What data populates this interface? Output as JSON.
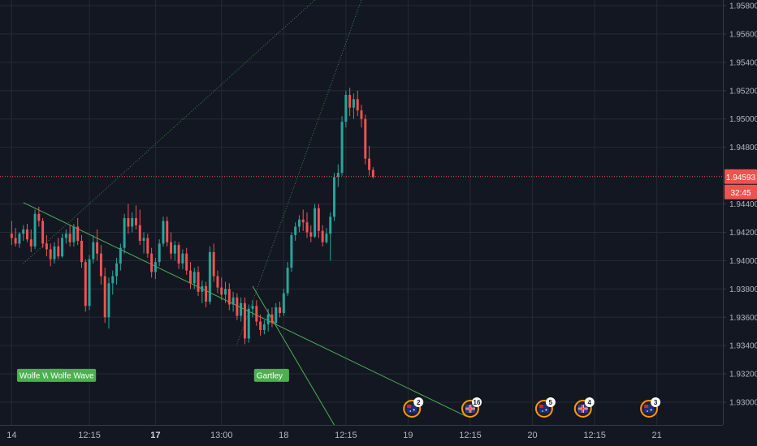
{
  "chart_data": {
    "type": "candlestick",
    "ylim": [
      1.9284,
      1.9584
    ],
    "x_range": [
      -3,
      183
    ],
    "grid": true,
    "colors": {
      "background": "#131722",
      "grid": "#242a36",
      "up": "#26a69a",
      "down": "#ef5350",
      "text": "#b2b5be",
      "pattern_line": "#4caf50",
      "price_line": "#ef5350"
    },
    "y_ticks": [
      "1.95800",
      "1.95600",
      "1.95400",
      "1.95200",
      "1.95000",
      "1.94800",
      "1.94400",
      "1.94200",
      "1.94000",
      "1.93800",
      "1.93600",
      "1.93400",
      "1.93200",
      "1.93000"
    ],
    "x_ticks": [
      {
        "x": 0,
        "label": "14",
        "bold": false
      },
      {
        "x": 20,
        "label": "12:15",
        "bold": false
      },
      {
        "x": 37,
        "label": "17",
        "bold": true
      },
      {
        "x": 54,
        "label": "13:00",
        "bold": false
      },
      {
        "x": 70,
        "label": "18",
        "bold": false
      },
      {
        "x": 86,
        "label": "12:15",
        "bold": false
      },
      {
        "x": 102,
        "label": "19",
        "bold": false
      },
      {
        "x": 118,
        "label": "12:15",
        "bold": false
      },
      {
        "x": 134,
        "label": "20",
        "bold": false
      },
      {
        "x": 150,
        "label": "12:15",
        "bold": false
      },
      {
        "x": 166,
        "label": "21",
        "bold": false
      }
    ],
    "current_price": {
      "label": "1.94593",
      "value": 1.94593,
      "countdown": "32:45"
    },
    "candles": [
      [
        1.9419,
        1.9428,
        1.9411,
        1.9416
      ],
      [
        1.9416,
        1.9423,
        1.941,
        1.9412
      ],
      [
        1.9412,
        1.942,
        1.9409,
        1.9419
      ],
      [
        1.9419,
        1.9425,
        1.9414,
        1.9422
      ],
      [
        1.9422,
        1.9426,
        1.9413,
        1.9415
      ],
      [
        1.9415,
        1.9422,
        1.9406,
        1.941
      ],
      [
        1.941,
        1.9436,
        1.9408,
        1.9433
      ],
      [
        1.9433,
        1.9438,
        1.9424,
        1.9428
      ],
      [
        1.9428,
        1.943,
        1.9409,
        1.9412
      ],
      [
        1.9412,
        1.9418,
        1.9403,
        1.9408
      ],
      [
        1.9408,
        1.9412,
        1.9396,
        1.9401
      ],
      [
        1.9401,
        1.9413,
        1.9398,
        1.941
      ],
      [
        1.941,
        1.9416,
        1.9401,
        1.9403
      ],
      [
        1.9403,
        1.9419,
        1.9402,
        1.9416
      ],
      [
        1.9416,
        1.9422,
        1.9412,
        1.9419
      ],
      [
        1.9419,
        1.9425,
        1.941,
        1.9413
      ],
      [
        1.9413,
        1.9426,
        1.941,
        1.9424
      ],
      [
        1.9424,
        1.943,
        1.9411,
        1.9414
      ],
      [
        1.9414,
        1.9418,
        1.9395,
        1.9399
      ],
      [
        1.9399,
        1.9401,
        1.9364,
        1.9368
      ],
      [
        1.9368,
        1.9404,
        1.9365,
        1.9401
      ],
      [
        1.9401,
        1.9418,
        1.9398,
        1.9413
      ],
      [
        1.9413,
        1.9422,
        1.94,
        1.9405
      ],
      [
        1.9405,
        1.9411,
        1.9383,
        1.9389
      ],
      [
        1.9389,
        1.9395,
        1.9356,
        1.936
      ],
      [
        1.936,
        1.9388,
        1.9352,
        1.9384
      ],
      [
        1.9384,
        1.9393,
        1.9376,
        1.9389
      ],
      [
        1.9389,
        1.9402,
        1.9383,
        1.9398
      ],
      [
        1.9398,
        1.9412,
        1.9393,
        1.9409
      ],
      [
        1.9409,
        1.9433,
        1.9405,
        1.943
      ],
      [
        1.943,
        1.944,
        1.9419,
        1.9424
      ],
      [
        1.9424,
        1.9434,
        1.942,
        1.943
      ],
      [
        1.943,
        1.9439,
        1.9422,
        1.9425
      ],
      [
        1.9425,
        1.9436,
        1.9411,
        1.9414
      ],
      [
        1.9414,
        1.942,
        1.9405,
        1.9416
      ],
      [
        1.9416,
        1.9419,
        1.9402,
        1.9405
      ],
      [
        1.9405,
        1.9409,
        1.9388,
        1.9392
      ],
      [
        1.9392,
        1.9402,
        1.9387,
        1.9399
      ],
      [
        1.9399,
        1.9415,
        1.9396,
        1.9412
      ],
      [
        1.9412,
        1.9431,
        1.941,
        1.9428
      ],
      [
        1.9428,
        1.9431,
        1.941,
        1.9413
      ],
      [
        1.9413,
        1.942,
        1.9401,
        1.9405
      ],
      [
        1.9405,
        1.9414,
        1.94,
        1.9411
      ],
      [
        1.9411,
        1.9413,
        1.9394,
        1.9398
      ],
      [
        1.9398,
        1.9408,
        1.9394,
        1.9405
      ],
      [
        1.9405,
        1.9409,
        1.939,
        1.9393
      ],
      [
        1.9393,
        1.9399,
        1.938,
        1.9384
      ],
      [
        1.9384,
        1.9395,
        1.938,
        1.9392
      ],
      [
        1.9392,
        1.9396,
        1.9375,
        1.9378
      ],
      [
        1.9378,
        1.9386,
        1.937,
        1.9382
      ],
      [
        1.9382,
        1.9385,
        1.9367,
        1.9371
      ],
      [
        1.9371,
        1.941,
        1.9369,
        1.9406
      ],
      [
        1.9406,
        1.9412,
        1.9385,
        1.9389
      ],
      [
        1.9389,
        1.9393,
        1.9377,
        1.9381
      ],
      [
        1.9381,
        1.9388,
        1.9372,
        1.9376
      ],
      [
        1.9376,
        1.9385,
        1.937,
        1.938
      ],
      [
        1.938,
        1.9384,
        1.9365,
        1.9369
      ],
      [
        1.9369,
        1.9378,
        1.9364,
        1.9374
      ],
      [
        1.9374,
        1.9377,
        1.9358,
        1.9361
      ],
      [
        1.9361,
        1.9374,
        1.9357,
        1.937
      ],
      [
        1.937,
        1.9374,
        1.9341,
        1.9345
      ],
      [
        1.9345,
        1.9369,
        1.9342,
        1.9366
      ],
      [
        1.9366,
        1.9372,
        1.936,
        1.9368
      ],
      [
        1.9368,
        1.9372,
        1.9354,
        1.9357
      ],
      [
        1.9357,
        1.9362,
        1.9347,
        1.9351
      ],
      [
        1.9351,
        1.9358,
        1.9348,
        1.9355
      ],
      [
        1.9355,
        1.9366,
        1.935,
        1.9362
      ],
      [
        1.9362,
        1.9367,
        1.9353,
        1.9356
      ],
      [
        1.9356,
        1.937,
        1.9354,
        1.9367
      ],
      [
        1.9367,
        1.9371,
        1.936,
        1.9363
      ],
      [
        1.9363,
        1.938,
        1.9361,
        1.9377
      ],
      [
        1.9377,
        1.9399,
        1.9375,
        1.9395
      ],
      [
        1.9395,
        1.942,
        1.9392,
        1.9418
      ],
      [
        1.9418,
        1.9427,
        1.9414,
        1.9424
      ],
      [
        1.9424,
        1.9432,
        1.942,
        1.9429
      ],
      [
        1.9429,
        1.9436,
        1.9421,
        1.9427
      ],
      [
        1.9427,
        1.9434,
        1.9416,
        1.942
      ],
      [
        1.942,
        1.9425,
        1.9413,
        1.9417
      ],
      [
        1.9417,
        1.944,
        1.9416,
        1.9437
      ],
      [
        1.9437,
        1.944,
        1.9416,
        1.9421
      ],
      [
        1.9421,
        1.9425,
        1.941,
        1.9413
      ],
      [
        1.9413,
        1.9423,
        1.9412,
        1.9419
      ],
      [
        1.9419,
        1.9434,
        1.94,
        1.9431
      ],
      [
        1.9431,
        1.9462,
        1.9428,
        1.9459
      ],
      [
        1.9459,
        1.9468,
        1.9452,
        1.9462
      ],
      [
        1.9462,
        1.9502,
        1.946,
        1.9498
      ],
      [
        1.9498,
        1.952,
        1.9494,
        1.9517
      ],
      [
        1.9517,
        1.9522,
        1.9502,
        1.9508
      ],
      [
        1.9508,
        1.9518,
        1.95,
        1.9514
      ],
      [
        1.9514,
        1.952,
        1.9502,
        1.9506
      ],
      [
        1.9506,
        1.951,
        1.9494,
        1.95
      ],
      [
        1.95,
        1.9503,
        1.9468,
        1.9472
      ],
      [
        1.9472,
        1.9481,
        1.946,
        1.9464
      ],
      [
        1.9464,
        1.9466,
        1.9458,
        1.9459
      ]
    ],
    "patterns": [
      {
        "label": "Wolfe Wave",
        "x": 2,
        "anchor": "start",
        "y": 1.9319
      },
      {
        "label": "Wolfe Wave",
        "x": 10,
        "anchor": "start",
        "y": 1.9319
      },
      {
        "label": "Gartley",
        "x": 63,
        "anchor": "start",
        "y": 1.9319
      }
    ],
    "trend_lines": [
      {
        "x1": 3,
        "y1": 1.9441,
        "x2": 117,
        "y2": 1.929,
        "style": "solid"
      },
      {
        "x1": 62,
        "y1": 1.9382,
        "x2": 83,
        "y2": 1.9284,
        "style": "solid"
      },
      {
        "x1": 3,
        "y1": 1.9398,
        "x2": 78,
        "y2": 1.9584,
        "style": "dotted"
      },
      {
        "x1": 58,
        "y1": 1.9341,
        "x2": 90,
        "y2": 1.9584,
        "style": "dotted"
      }
    ],
    "events": [
      {
        "x": 103,
        "count": "2",
        "flag": "AU"
      },
      {
        "x": 118,
        "count": "16",
        "flag": "UK"
      },
      {
        "x": 137,
        "count": "5",
        "flag": "AU"
      },
      {
        "x": 147,
        "count": "4",
        "flag": "UK"
      },
      {
        "x": 164,
        "count": "3",
        "flag": "AU"
      }
    ]
  }
}
